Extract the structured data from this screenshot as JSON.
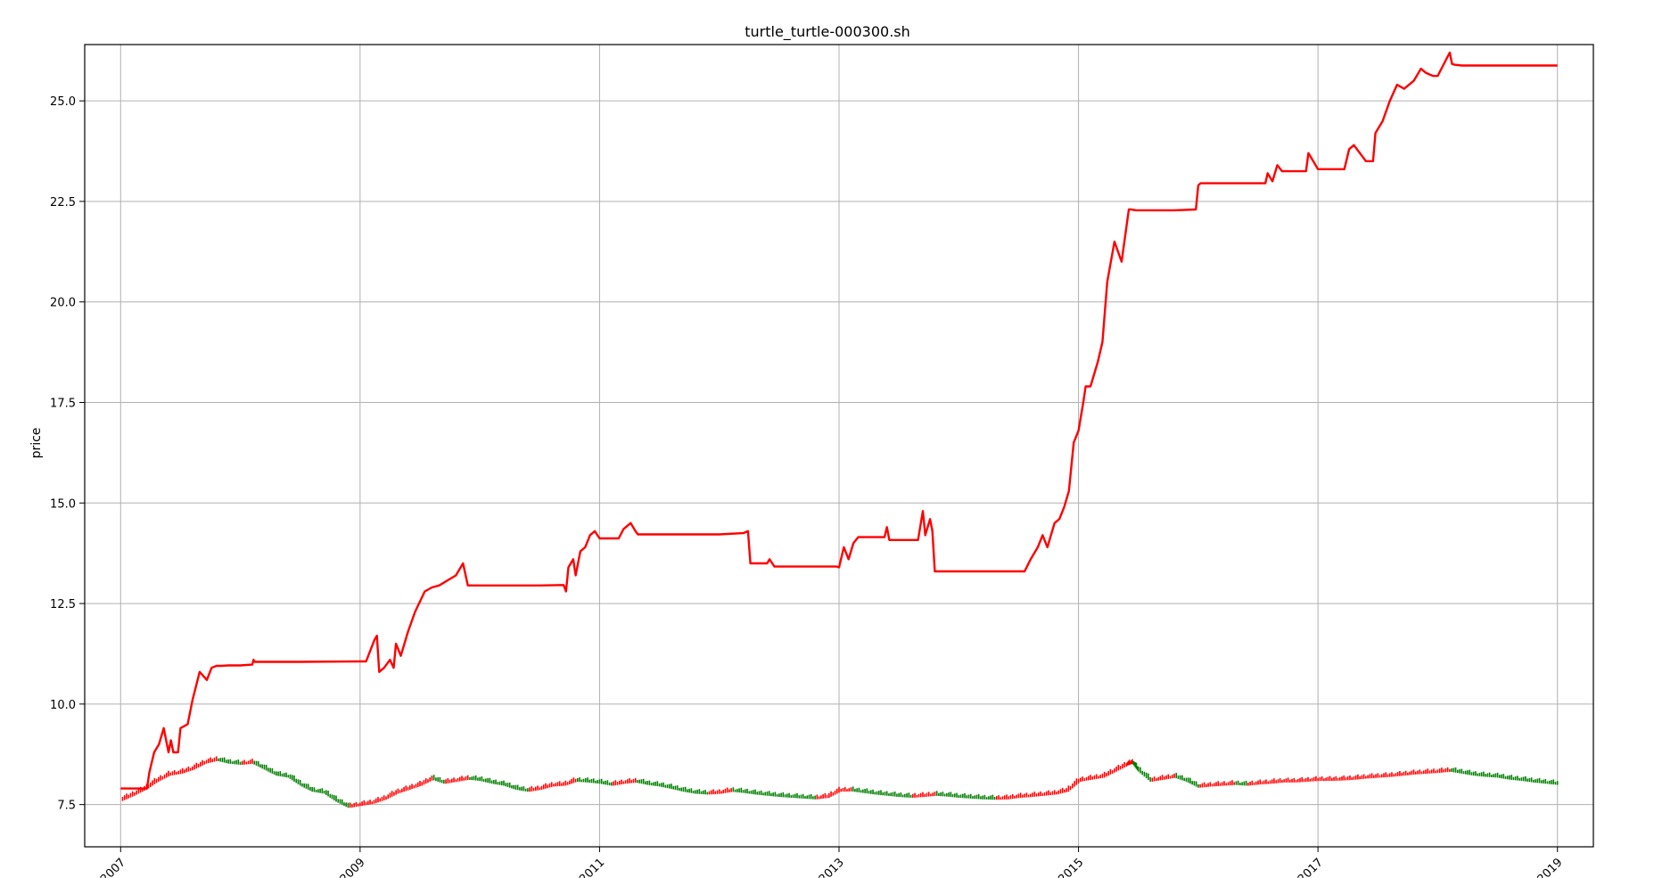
{
  "chart_data": {
    "type": "line",
    "title": "turtle_turtle-000300.sh",
    "xlabel": "",
    "ylabel": "price",
    "grid": true,
    "xlim": [
      2006.7,
      2019.3
    ],
    "ylim": [
      6.45,
      26.4
    ],
    "xticks": [
      2007,
      2009,
      2011,
      2013,
      2015,
      2017,
      2019
    ],
    "xtick_labels": [
      "2007",
      "2009",
      "2011",
      "2013",
      "2015",
      "2017",
      "2019"
    ],
    "yticks": [
      7.5,
      10.0,
      12.5,
      15.0,
      17.5,
      20.0,
      22.5,
      25.0
    ],
    "ytick_labels": [
      "7.5",
      "10.0",
      "12.5",
      "15.0",
      "17.5",
      "20.0",
      "22.5",
      "25.0"
    ],
    "colors": {
      "equity": "#ff0000",
      "candle_up": "#ff0000",
      "candle_down": "#008000",
      "grid": "#b0b0b0",
      "axes": "#000000"
    },
    "series": [
      {
        "kind": "equity_line",
        "x": [
          2007.0,
          2007.22,
          2007.24,
          2007.28,
          2007.32,
          2007.36,
          2007.4,
          2007.42,
          2007.44,
          2007.48,
          2007.5,
          2007.56,
          2007.6,
          2007.66,
          2007.72,
          2007.76,
          2007.8,
          2007.82,
          2007.84,
          2007.9,
          2008.0,
          2008.1,
          2008.11,
          2008.12,
          2008.5,
          2009.0,
          2009.05,
          2009.12,
          2009.14,
          2009.16,
          2009.2,
          2009.25,
          2009.28,
          2009.3,
          2009.34,
          2009.4,
          2009.46,
          2009.54,
          2009.6,
          2009.66,
          2009.8,
          2009.86,
          2009.9,
          2010.5,
          2010.7,
          2010.72,
          2010.74,
          2010.78,
          2010.8,
          2010.84,
          2010.88,
          2010.92,
          2010.96,
          2011.0,
          2011.16,
          2011.2,
          2011.26,
          2011.3,
          2011.32,
          2012.0,
          2012.2,
          2012.24,
          2012.26,
          2012.3,
          2012.4,
          2012.42,
          2012.46,
          2012.5,
          2012.98,
          2013.0,
          2013.04,
          2013.08,
          2013.12,
          2013.16,
          2013.38,
          2013.4,
          2013.42,
          2013.66,
          2013.7,
          2013.72,
          2013.76,
          2013.78,
          2013.8,
          2013.82,
          2014.0,
          2014.55,
          2014.6,
          2014.66,
          2014.7,
          2014.74,
          2014.8,
          2014.84,
          2014.88,
          2014.92,
          2014.96,
          2015.0,
          2015.04,
          2015.06,
          2015.1,
          2015.16,
          2015.2,
          2015.24,
          2015.3,
          2015.36,
          2015.42,
          2015.44,
          2015.48,
          2015.6,
          2015.8,
          2015.98,
          2016.0,
          2016.02,
          2016.56,
          2016.58,
          2016.62,
          2016.66,
          2016.7,
          2016.9,
          2016.92,
          2016.96,
          2017.0,
          2017.22,
          2017.26,
          2017.3,
          2017.4,
          2017.46,
          2017.48,
          2017.54,
          2017.6,
          2017.66,
          2017.72,
          2017.8,
          2017.86,
          2017.9,
          2017.96,
          2018.0,
          2018.1,
          2018.12,
          2018.14,
          2018.2,
          2018.4,
          2019.0
        ],
        "y": [
          7.9,
          7.9,
          8.3,
          8.8,
          9.0,
          9.4,
          8.8,
          9.1,
          8.8,
          8.8,
          9.4,
          9.5,
          10.1,
          10.8,
          10.6,
          10.9,
          10.95,
          10.95,
          10.95,
          10.96,
          10.96,
          10.98,
          11.1,
          11.05,
          11.05,
          11.06,
          11.06,
          11.6,
          11.7,
          10.8,
          10.9,
          11.1,
          10.9,
          11.5,
          11.2,
          11.8,
          12.3,
          12.8,
          12.9,
          12.95,
          13.2,
          13.5,
          12.95,
          12.95,
          12.96,
          12.8,
          13.4,
          13.6,
          13.2,
          13.8,
          13.9,
          14.2,
          14.3,
          14.12,
          14.12,
          14.35,
          14.5,
          14.3,
          14.22,
          14.22,
          14.25,
          14.3,
          13.5,
          13.5,
          13.5,
          13.6,
          13.42,
          13.42,
          13.42,
          13.4,
          13.9,
          13.6,
          14.0,
          14.15,
          14.15,
          14.4,
          14.08,
          14.08,
          14.8,
          14.2,
          14.6,
          14.3,
          13.3,
          13.3,
          13.3,
          13.3,
          13.6,
          13.9,
          14.2,
          13.9,
          14.5,
          14.6,
          14.9,
          15.3,
          16.5,
          16.8,
          17.5,
          17.9,
          17.9,
          18.5,
          19.0,
          20.5,
          21.5,
          21.0,
          22.3,
          22.3,
          22.28,
          22.28,
          22.28,
          22.3,
          22.9,
          22.95,
          22.95,
          23.2,
          23.0,
          23.4,
          23.25,
          23.25,
          23.7,
          23.5,
          23.3,
          23.3,
          23.8,
          23.9,
          23.5,
          23.5,
          24.2,
          24.5,
          25.0,
          25.4,
          25.3,
          25.5,
          25.8,
          25.7,
          25.62,
          25.62,
          26.2,
          25.92,
          25.9,
          25.88,
          25.88,
          25.88
        ]
      },
      {
        "kind": "candlestick",
        "x": [
          2007.0,
          2007.1,
          2007.2,
          2007.3,
          2007.4,
          2007.5,
          2007.6,
          2007.7,
          2007.8,
          2007.9,
          2008.0,
          2008.1,
          2008.2,
          2008.3,
          2008.4,
          2008.5,
          2008.6,
          2008.7,
          2008.8,
          2008.9,
          2009.0,
          2009.1,
          2009.2,
          2009.3,
          2009.4,
          2009.5,
          2009.6,
          2009.7,
          2009.8,
          2009.9,
          2010.0,
          2010.1,
          2010.2,
          2010.3,
          2010.4,
          2010.5,
          2010.6,
          2010.7,
          2010.8,
          2010.9,
          2011.0,
          2011.1,
          2011.2,
          2011.3,
          2011.4,
          2011.5,
          2011.6,
          2011.7,
          2011.8,
          2011.9,
          2012.0,
          2012.1,
          2012.2,
          2012.3,
          2012.4,
          2012.5,
          2012.6,
          2012.7,
          2012.8,
          2012.9,
          2013.0,
          2013.1,
          2013.2,
          2013.3,
          2013.4,
          2013.5,
          2013.6,
          2013.7,
          2013.8,
          2013.9,
          2014.0,
          2014.1,
          2014.2,
          2014.3,
          2014.4,
          2014.5,
          2014.6,
          2014.7,
          2014.8,
          2014.9,
          2015.0,
          2015.1,
          2015.2,
          2015.3,
          2015.4,
          2015.45,
          2015.5,
          2015.6,
          2015.7,
          2015.8,
          2015.9,
          2016.0,
          2016.1,
          2016.2,
          2016.3,
          2016.4,
          2016.5,
          2016.6,
          2016.7,
          2016.8,
          2016.9,
          2017.0,
          2017.1,
          2017.2,
          2017.3,
          2017.4,
          2017.5,
          2017.6,
          2017.7,
          2017.8,
          2017.9,
          2018.0,
          2018.1,
          2018.2,
          2018.3,
          2018.4,
          2018.5,
          2018.6,
          2018.7,
          2018.8,
          2018.9,
          2019.0
        ],
        "y": [
          7.62,
          7.75,
          7.9,
          8.1,
          8.25,
          8.3,
          8.4,
          8.55,
          8.62,
          8.55,
          8.52,
          8.55,
          8.4,
          8.25,
          8.2,
          8.0,
          7.85,
          7.8,
          7.6,
          7.45,
          7.5,
          7.55,
          7.65,
          7.8,
          7.9,
          8.0,
          8.15,
          8.05,
          8.1,
          8.15,
          8.12,
          8.05,
          8.0,
          7.9,
          7.85,
          7.9,
          7.98,
          8.0,
          8.1,
          8.08,
          8.05,
          8.0,
          8.05,
          8.08,
          8.02,
          7.98,
          7.92,
          7.85,
          7.8,
          7.78,
          7.8,
          7.85,
          7.82,
          7.78,
          7.75,
          7.72,
          7.7,
          7.68,
          7.66,
          7.7,
          7.85,
          7.86,
          7.82,
          7.78,
          7.75,
          7.72,
          7.7,
          7.72,
          7.75,
          7.73,
          7.7,
          7.68,
          7.66,
          7.65,
          7.66,
          7.7,
          7.72,
          7.75,
          7.78,
          7.85,
          8.1,
          8.15,
          8.2,
          8.35,
          8.5,
          8.55,
          8.35,
          8.1,
          8.15,
          8.2,
          8.1,
          7.95,
          7.98,
          8.0,
          8.02,
          8.0,
          8.03,
          8.05,
          8.08,
          8.08,
          8.1,
          8.12,
          8.12,
          8.13,
          8.15,
          8.18,
          8.2,
          8.22,
          8.25,
          8.28,
          8.3,
          8.32,
          8.35,
          8.3,
          8.25,
          8.22,
          8.2,
          8.15,
          8.12,
          8.08,
          8.05,
          8.02
        ]
      }
    ]
  }
}
